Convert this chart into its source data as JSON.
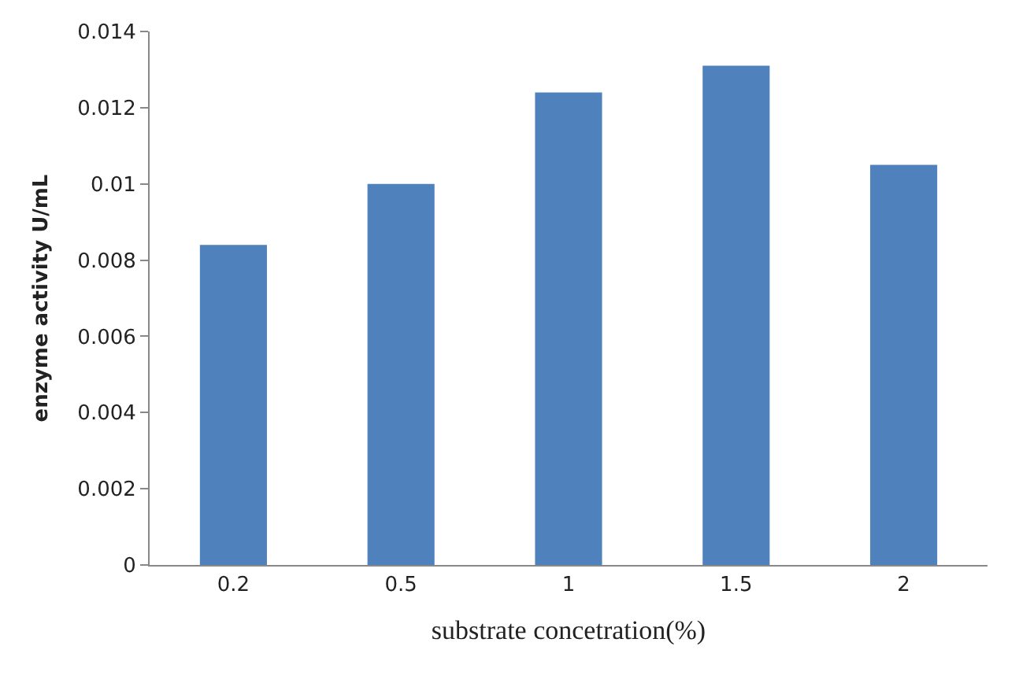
{
  "chart_data": {
    "type": "bar",
    "xlabel": "substrate concetration(%)",
    "ylabel": "enzyme activity U/mL",
    "categories": [
      "0.2",
      "0.5",
      "1",
      "1.5",
      "2"
    ],
    "values": [
      0.0084,
      0.01,
      0.0124,
      0.0131,
      0.0105
    ],
    "color": "#4f81bd",
    "ylim": [
      0,
      0.014
    ],
    "yticks": [
      0,
      0.002,
      0.004,
      0.006,
      0.008,
      0.01,
      0.012,
      0.014
    ]
  }
}
